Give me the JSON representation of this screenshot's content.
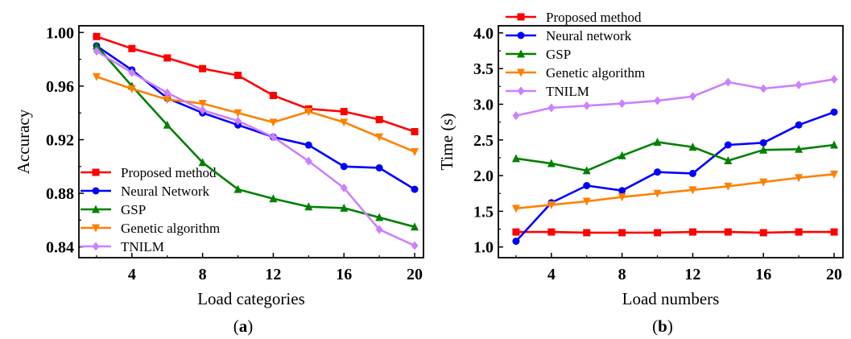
{
  "chart_data": [
    {
      "type": "line",
      "panel_label": "(a)",
      "xlabel": "Load categories",
      "ylabel": "Accuracy",
      "x": [
        2,
        4,
        6,
        8,
        10,
        12,
        14,
        16,
        18,
        20
      ],
      "xticks": [
        4,
        8,
        12,
        16,
        20
      ],
      "xtick_labels": [
        "4",
        "8",
        "12",
        "16",
        "20"
      ],
      "xlim": [
        1,
        20.5
      ],
      "ylim": [
        0.832,
        1.005
      ],
      "yticks": [
        0.84,
        0.88,
        0.92,
        0.96,
        1.0
      ],
      "ytick_labels": [
        "0.84",
        "0.88",
        "0.92",
        "0.96",
        "1.00"
      ],
      "legend_position": "bottom-left",
      "series": [
        {
          "name": "Proposed method",
          "color": "#ff0000",
          "marker": "square",
          "values": [
            0.997,
            0.988,
            0.981,
            0.973,
            0.968,
            0.953,
            0.943,
            0.941,
            0.935,
            0.926
          ]
        },
        {
          "name": "Neural Network",
          "color": "#0000ff",
          "marker": "circle",
          "values": [
            0.99,
            0.972,
            0.951,
            0.94,
            0.931,
            0.922,
            0.916,
            0.9,
            0.899,
            0.883
          ]
        },
        {
          "name": "GSP",
          "color": "#008000",
          "marker": "triangle-up",
          "values": [
            0.99,
            0.96,
            0.931,
            0.903,
            0.883,
            0.876,
            0.87,
            0.869,
            0.862,
            0.855
          ]
        },
        {
          "name": "Genetic algorithm",
          "color": "#ff8000",
          "marker": "triangle-down",
          "values": [
            0.967,
            0.958,
            0.95,
            0.947,
            0.94,
            0.933,
            0.941,
            0.933,
            0.922,
            0.911
          ]
        },
        {
          "name": "TNILM",
          "color": "#cc80ff",
          "marker": "diamond",
          "values": [
            0.986,
            0.97,
            0.955,
            0.942,
            0.934,
            0.922,
            0.904,
            0.884,
            0.853,
            0.841
          ]
        }
      ]
    },
    {
      "type": "line",
      "panel_label": "(b)",
      "xlabel": "Load numbers",
      "ylabel": "Time (s)",
      "x": [
        2,
        4,
        6,
        8,
        10,
        12,
        14,
        16,
        18,
        20
      ],
      "xticks": [
        4,
        8,
        12,
        16,
        20
      ],
      "xtick_labels": [
        "4",
        "8",
        "12",
        "16",
        "20"
      ],
      "xlim": [
        1,
        20.5
      ],
      "ylim": [
        0.85,
        4.1
      ],
      "yticks": [
        1.0,
        1.5,
        2.0,
        2.5,
        3.0,
        3.5,
        4.0
      ],
      "ytick_labels": [
        "1.0",
        "1.5",
        "2.0",
        "2.5",
        "3.0",
        "3.5",
        "4.0"
      ],
      "legend_position": "top-left",
      "series": [
        {
          "name": "Proposed method",
          "color": "#ff0000",
          "marker": "square",
          "values": [
            1.21,
            1.21,
            1.2,
            1.2,
            1.2,
            1.21,
            1.21,
            1.2,
            1.21,
            1.21
          ]
        },
        {
          "name": "Neural network",
          "color": "#0000ff",
          "marker": "circle",
          "values": [
            1.08,
            1.62,
            1.86,
            1.79,
            2.05,
            2.03,
            2.43,
            2.46,
            2.71,
            2.89
          ]
        },
        {
          "name": "GSP",
          "color": "#008000",
          "marker": "triangle-up",
          "values": [
            2.24,
            2.17,
            2.07,
            2.28,
            2.47,
            2.4,
            2.21,
            2.36,
            2.37,
            2.43
          ]
        },
        {
          "name": "Genetic algorithm",
          "color": "#ff8000",
          "marker": "triangle-down",
          "values": [
            1.54,
            1.59,
            1.64,
            1.7,
            1.75,
            1.8,
            1.85,
            1.91,
            1.97,
            2.02
          ]
        },
        {
          "name": "TNILM",
          "color": "#cc80ff",
          "marker": "diamond",
          "values": [
            2.84,
            2.95,
            2.98,
            3.01,
            3.05,
            3.11,
            3.31,
            3.22,
            3.27,
            3.35
          ]
        }
      ]
    }
  ]
}
